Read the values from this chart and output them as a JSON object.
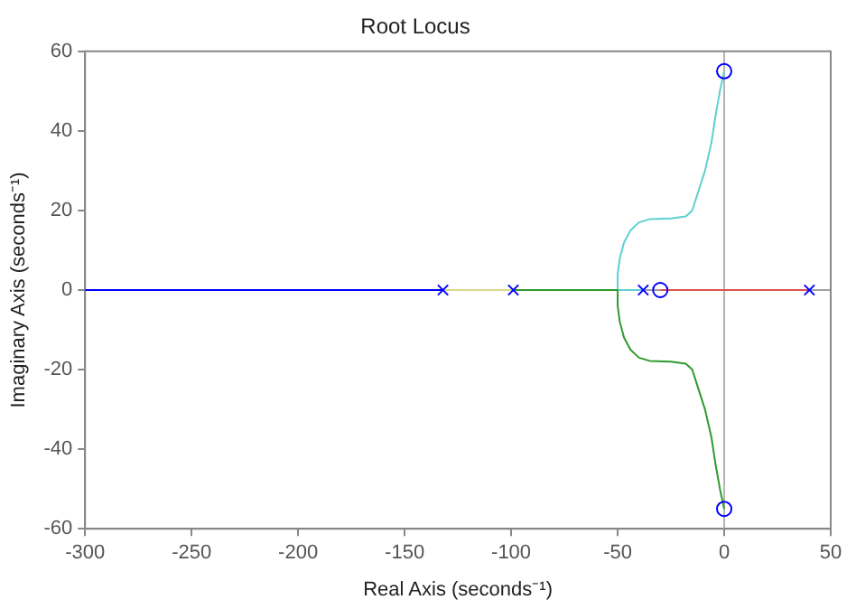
{
  "chart_data": {
    "type": "line",
    "title": "Root Locus",
    "xlabel": "Real Axis (seconds⁻¹)",
    "ylabel": "Imaginary Axis (seconds⁻¹)",
    "xlim": [
      -300,
      50
    ],
    "xticks": [
      -300,
      -250,
      -200,
      -150,
      -100,
      -50,
      0,
      50
    ],
    "ylim": [
      -60,
      60
    ],
    "yticks": [
      -60,
      -40,
      -20,
      0,
      20,
      40,
      60
    ],
    "grid": false,
    "legend": false,
    "ref_lines": [
      {
        "axis": "x",
        "value": 0,
        "color": "#b4b4b4"
      },
      {
        "axis": "y",
        "value": 0,
        "color": "#a0a0a0"
      }
    ],
    "series": [
      {
        "type": "line",
        "marker": "none",
        "color": "#0000ff",
        "x": [
          -300,
          -132
        ],
        "values": [
          0,
          0
        ]
      },
      {
        "type": "line",
        "marker": "none",
        "color": "#d8d890",
        "x": [
          -132,
          -99
        ],
        "values": [
          0,
          0
        ]
      },
      {
        "type": "line",
        "marker": "none",
        "color": "#2e9a2e",
        "x": [
          -99,
          -50,
          -50,
          -49,
          -47,
          -44,
          -40,
          -35,
          -25,
          -18,
          -15,
          -12,
          -9,
          -6,
          -4,
          -2,
          0
        ],
        "values": [
          0,
          0,
          -4,
          -8,
          -12,
          -15,
          -17,
          -17.8,
          -18,
          -18.5,
          -20,
          -25,
          -30,
          -37,
          -44,
          -50,
          -55
        ]
      },
      {
        "type": "line",
        "marker": "none",
        "color": "#5fd0d0",
        "x": [
          -38,
          -50,
          -50,
          -49,
          -47,
          -44,
          -40,
          -35,
          -25,
          -18,
          -15,
          -12,
          -9,
          -6,
          -4,
          -2,
          0
        ],
        "values": [
          0,
          0,
          4,
          8,
          12,
          15,
          17,
          17.8,
          18,
          18.5,
          20,
          25,
          30,
          37,
          44,
          50,
          55
        ]
      },
      {
        "type": "line",
        "marker": "none",
        "color": "#e05050",
        "x": [
          -30,
          40
        ],
        "values": [
          0,
          0
        ]
      },
      {
        "type": "scatter",
        "marker": "cross",
        "color": "#0000ff",
        "x": [
          -132,
          -99,
          -38,
          40
        ],
        "values": [
          0,
          0,
          0,
          0
        ]
      },
      {
        "type": "scatter",
        "marker": "circle",
        "color": "#0000ff",
        "x": [
          0,
          0,
          -30
        ],
        "values": [
          55,
          -55,
          0
        ]
      }
    ]
  }
}
